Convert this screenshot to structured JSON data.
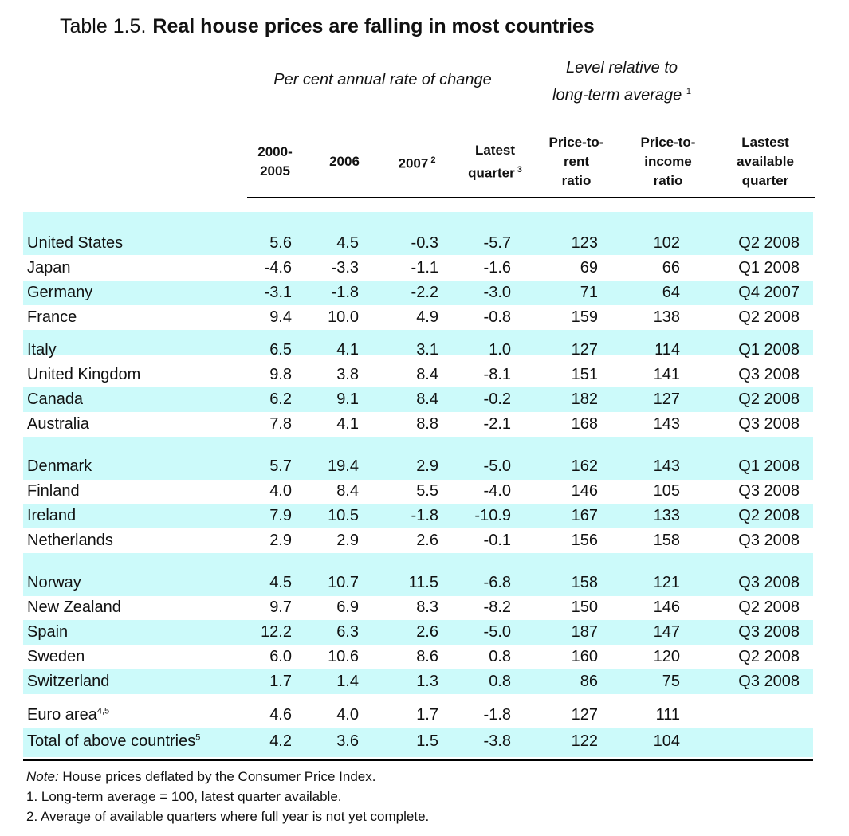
{
  "title": {
    "prefix": "Table 1.5.",
    "main": "Real house prices are falling in most countries"
  },
  "group_headers": {
    "change": "Per cent annual rate of change",
    "level_line1": "Level relative to",
    "level_line2": "long-term average",
    "level_sup": "1"
  },
  "columns": [
    {
      "line1": "2000-",
      "line2": "2005"
    },
    {
      "line1": "2006"
    },
    {
      "line1": "2007",
      "sup": "2"
    },
    {
      "line1": "Latest",
      "line2": "quarter",
      "sup": "3"
    },
    {
      "line1": "Price-to-",
      "line2": "rent",
      "line3": "ratio"
    },
    {
      "line1": "Price-to-",
      "line2": "income",
      "line3": "ratio"
    },
    {
      "line1": "Lastest",
      "line2": "available",
      "line3": "quarter"
    }
  ],
  "rows": [
    {
      "label": "United States",
      "v": [
        "5.6",
        "4.5",
        "-0.3",
        "-5.7",
        "123",
        "102",
        "Q2 2008"
      ]
    },
    {
      "label": "Japan",
      "v": [
        "-4.6",
        "-3.3",
        "-1.1",
        "-1.6",
        "69",
        "66",
        "Q1 2008"
      ]
    },
    {
      "label": "Germany",
      "v": [
        "-3.1",
        "-1.8",
        "-2.2",
        "-3.0",
        "71",
        "64",
        "Q4 2007"
      ]
    },
    {
      "label": "France",
      "v": [
        "9.4",
        "10.0",
        "4.9",
        "-0.8",
        "159",
        "138",
        "Q2 2008"
      ]
    },
    {
      "label": "Italy",
      "v": [
        "6.5",
        "4.1",
        "3.1",
        "1.0",
        "127",
        "114",
        "Q1 2008"
      ]
    },
    {
      "label": "United Kingdom",
      "v": [
        "9.8",
        "3.8",
        "8.4",
        "-8.1",
        "151",
        "141",
        "Q3 2008"
      ]
    },
    {
      "label": "Canada",
      "v": [
        "6.2",
        "9.1",
        "8.4",
        "-0.2",
        "182",
        "127",
        "Q2 2008"
      ]
    },
    {
      "label": "Australia",
      "v": [
        "7.8",
        "4.1",
        "8.8",
        "-2.1",
        "168",
        "143",
        "Q3 2008"
      ]
    },
    {
      "label": "Denmark",
      "v": [
        "5.7",
        "19.4",
        "2.9",
        "-5.0",
        "162",
        "143",
        "Q1 2008"
      ]
    },
    {
      "label": "Finland",
      "v": [
        "4.0",
        "8.4",
        "5.5",
        "-4.0",
        "146",
        "105",
        "Q3 2008"
      ]
    },
    {
      "label": "Ireland",
      "v": [
        "7.9",
        "10.5",
        "-1.8",
        "-10.9",
        "167",
        "133",
        "Q2 2008"
      ]
    },
    {
      "label": "Netherlands",
      "v": [
        "2.9",
        "2.9",
        "2.6",
        "-0.1",
        "156",
        "158",
        "Q3 2008"
      ]
    },
    {
      "label": "Norway",
      "v": [
        "4.5",
        "10.7",
        "11.5",
        "-6.8",
        "158",
        "121",
        "Q3 2008"
      ]
    },
    {
      "label": "New Zealand",
      "v": [
        "9.7",
        "6.9",
        "8.3",
        "-8.2",
        "150",
        "146",
        "Q2 2008"
      ]
    },
    {
      "label": "Spain",
      "v": [
        "12.2",
        "6.3",
        "2.6",
        "-5.0",
        "187",
        "147",
        "Q3 2008"
      ]
    },
    {
      "label": "Sweden",
      "v": [
        "6.0",
        "10.6",
        "8.6",
        "0.8",
        "160",
        "120",
        "Q2 2008"
      ]
    },
    {
      "label": "Switzerland",
      "v": [
        "1.7",
        "1.4",
        "1.3",
        "0.8",
        "86",
        "75",
        "Q3 2008"
      ]
    },
    {
      "label": "Euro area",
      "sup": "4,5",
      "v": [
        "4.6",
        "4.0",
        "1.7",
        "-1.8",
        "127",
        "111",
        ""
      ]
    },
    {
      "label": "Total of above countries",
      "sup": "5",
      "v": [
        "4.2",
        "3.6",
        "1.5",
        "-3.8",
        "122",
        "104",
        ""
      ]
    }
  ],
  "notes": {
    "note_prefix": "Note:",
    "note_text": "House prices deflated by the Consumer Price Index.",
    "n1": "1.  Long-term average = 100, latest quarter available.",
    "n2": "2.  Average of available quarters where full year is not yet complete."
  },
  "colors": {
    "band": "#ccfafa",
    "rule": "#000000"
  }
}
